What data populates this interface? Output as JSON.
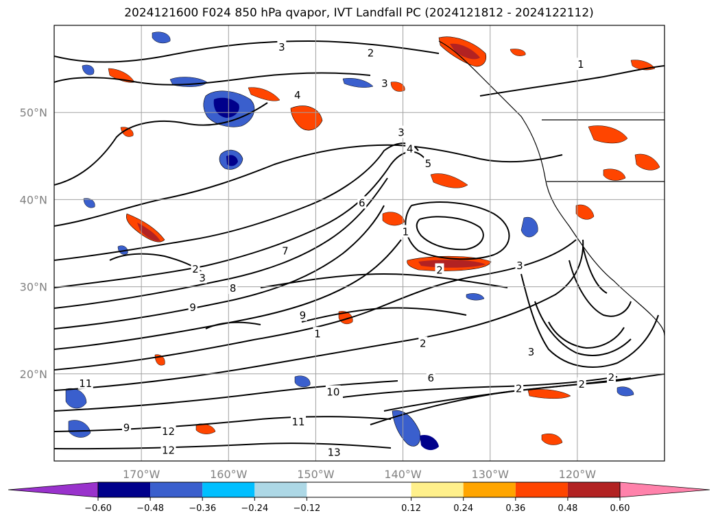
{
  "chart_data": {
    "type": "contour-map",
    "title": "2024121600 F024 850 hPa qvapor, IVT Landfall PC (2024121812 - 2024122112)",
    "xlabel": "",
    "ylabel": "",
    "lon_range": [
      -180,
      -110
    ],
    "lat_range": [
      10,
      60
    ],
    "lon_ticks": [
      -170,
      -160,
      -150,
      -140,
      -130,
      -120
    ],
    "lon_tick_labels": [
      "170°W",
      "160°W",
      "150°W",
      "140°W",
      "130°W",
      "120°W"
    ],
    "lat_ticks": [
      20,
      30,
      40,
      50
    ],
    "lat_tick_labels": [
      "20°N",
      "30°N",
      "40°N",
      "50°N"
    ],
    "grid": true,
    "colorbar": {
      "orientation": "horizontal",
      "extend": "both",
      "boundaries": [
        -0.72,
        -0.6,
        -0.48,
        -0.36,
        -0.24,
        -0.12,
        0.12,
        0.24,
        0.36,
        0.48,
        0.6,
        0.72
      ],
      "tick_values": [
        -0.6,
        -0.48,
        -0.36,
        -0.24,
        -0.12,
        0.12,
        0.24,
        0.36,
        0.48,
        0.6
      ],
      "tick_labels": [
        "−0.60",
        "−0.48",
        "−0.36",
        "−0.24",
        "−0.12",
        "0.12",
        "0.24",
        "0.36",
        "0.48",
        "0.60"
      ],
      "colors": [
        "#9932cc",
        "#00008b",
        "#3a5fcd",
        "#00bfff",
        "#add8e6",
        "#ffffff",
        "#fff08b",
        "#ffa500",
        "#ff4500",
        "#b22222",
        "#ff82ab"
      ]
    },
    "contour_labels": [
      {
        "value": "1",
        "lon": -119.6,
        "lat": 55.5
      },
      {
        "value": "2",
        "lon": -143.7,
        "lat": 56.8
      },
      {
        "value": "3",
        "lon": -153.9,
        "lat": 57.5
      },
      {
        "value": "3",
        "lon": -142.1,
        "lat": 53.3
      },
      {
        "value": "4",
        "lon": -152.1,
        "lat": 52.0
      },
      {
        "value": "3",
        "lon": -140.2,
        "lat": 47.7
      },
      {
        "value": "4",
        "lon": -139.2,
        "lat": 45.8
      },
      {
        "value": "5",
        "lon": -137.1,
        "lat": 44.1
      },
      {
        "value": "6",
        "lon": -144.7,
        "lat": 39.6
      },
      {
        "value": "1",
        "lon": -139.7,
        "lat": 36.3
      },
      {
        "value": "2",
        "lon": -135.8,
        "lat": 31.9
      },
      {
        "value": "7",
        "lon": -153.5,
        "lat": 34.1
      },
      {
        "value": "2",
        "lon": -163.8,
        "lat": 32.0
      },
      {
        "value": "3",
        "lon": -163.0,
        "lat": 31.0
      },
      {
        "value": "8",
        "lon": -159.5,
        "lat": 29.8
      },
      {
        "value": "9",
        "lon": -164.1,
        "lat": 27.6
      },
      {
        "value": "9",
        "lon": -151.5,
        "lat": 26.7
      },
      {
        "value": "1",
        "lon": -149.8,
        "lat": 24.6
      },
      {
        "value": "2",
        "lon": -137.7,
        "lat": 23.5
      },
      {
        "value": "3",
        "lon": -126.6,
        "lat": 32.4
      },
      {
        "value": "3",
        "lon": -125.3,
        "lat": 22.5
      },
      {
        "value": "2",
        "lon": -126.7,
        "lat": 18.3
      },
      {
        "value": "2",
        "lon": -119.5,
        "lat": 18.8
      },
      {
        "value": "2",
        "lon": -116.1,
        "lat": 19.6
      },
      {
        "value": "6",
        "lon": -136.8,
        "lat": 19.5
      },
      {
        "value": "10",
        "lon": -148.0,
        "lat": 17.9
      },
      {
        "value": "11",
        "lon": -152.0,
        "lat": 14.5
      },
      {
        "value": "12",
        "lon": -166.9,
        "lat": 13.4
      },
      {
        "value": "12",
        "lon": -166.9,
        "lat": 11.2
      },
      {
        "value": "13",
        "lon": -147.9,
        "lat": 11.0
      },
      {
        "value": "11",
        "lon": -176.4,
        "lat": 18.9
      },
      {
        "value": "9",
        "lon": -171.7,
        "lat": 13.8
      }
    ]
  }
}
